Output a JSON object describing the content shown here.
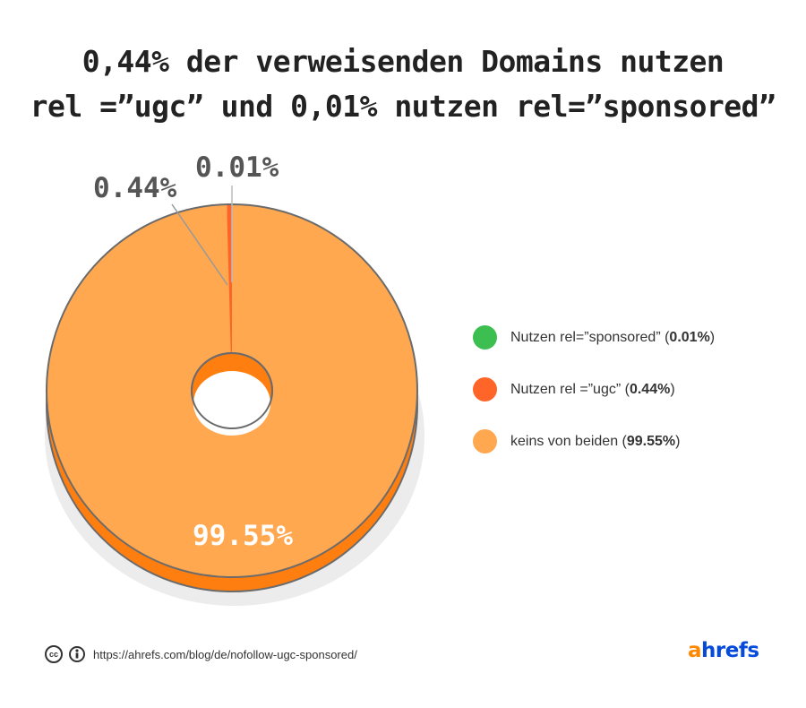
{
  "title": {
    "line1": "0,44% der verweisenden Domains nutzen",
    "line2": "rel =”ugc” und 0,01% nutzen rel=”sponsored”"
  },
  "chart_data": {
    "type": "pie",
    "variant": "donut-3d",
    "slices": [
      {
        "label": "keins von beiden",
        "value": 99.55,
        "display": "99.55%",
        "color": "#ffa850"
      },
      {
        "label": "Nutzen rel =”ugc”",
        "value": 0.44,
        "display": "0.44%",
        "color": "#ff6528"
      },
      {
        "label": "Nutzen rel=”sponsored”",
        "value": 0.01,
        "display": "0.01%",
        "color": "#3cbf50"
      }
    ],
    "legend_position": "right"
  },
  "legend": [
    {
      "label": "Nutzen rel=”sponsored”",
      "value": "0.01%",
      "color": "#3cbf50"
    },
    {
      "label": "Nutzen rel =”ugc”",
      "value": "0.44%",
      "color": "#ff6528"
    },
    {
      "label": "keins von beiden",
      "value": "99.55%",
      "color": "#ffa850"
    }
  ],
  "footer": {
    "url": "https://ahrefs.com/blog/de/nofollow-ugc-sponsored/",
    "cc_icon": "cc-icon",
    "by_icon": "attribution-icon"
  },
  "logo": {
    "a": "a",
    "rest": "hrefs"
  }
}
